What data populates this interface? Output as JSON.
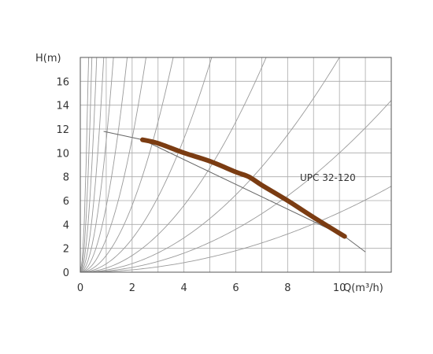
{
  "chart_data": {
    "type": "line",
    "title": "",
    "xlabel": "Q(m³/h)",
    "ylabel": "H(m)",
    "xlim": [
      0,
      12
    ],
    "ylim": [
      0,
      18
    ],
    "x_ticks": [
      "0",
      "2",
      "4",
      "6",
      "8",
      "10"
    ],
    "y_ticks": [
      "0",
      "2",
      "4",
      "6",
      "8",
      "10",
      "12",
      "14",
      "16"
    ],
    "grid": true,
    "series": [
      {
        "name": "UPC 32-120",
        "x": [
          2.4,
          3.0,
          4.0,
          5.0,
          6.0,
          6.5,
          7.0,
          8.0,
          9.0,
          10.2
        ],
        "y": [
          11.1,
          10.8,
          10.0,
          9.3,
          8.4,
          8.0,
          7.3,
          6.0,
          4.6,
          3.0
        ]
      }
    ],
    "curve_extension": {
      "x": [
        0.9,
        2.4,
        10.2,
        11.0
      ],
      "y": [
        11.8,
        11.1,
        3.0,
        1.7
      ]
    },
    "system_curves_k": [
      180,
      90,
      45,
      22,
      11,
      5.5,
      2.8,
      1.4,
      0.7,
      0.35,
      0.18,
      0.1,
      0.05
    ],
    "colors": {
      "pump_curve": "#7b3c12",
      "grid": "#aaaaaa",
      "system_curves": "#9a9a9a",
      "axis": "#555555"
    }
  }
}
